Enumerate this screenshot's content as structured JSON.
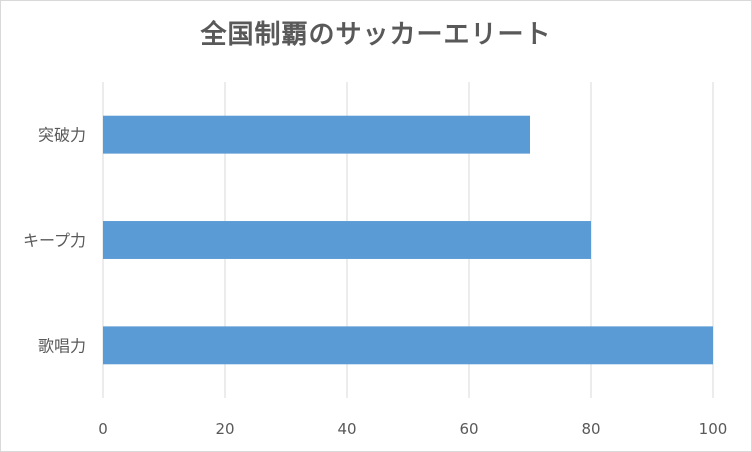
{
  "chart_data": {
    "type": "bar",
    "orientation": "horizontal",
    "title": "全国制覇のサッカーエリート",
    "categories": [
      "突破力",
      "キープ力",
      "歌唱力"
    ],
    "values": [
      70,
      80,
      100
    ],
    "xlim": [
      0,
      100
    ],
    "xticks": [
      "0",
      "20",
      "40",
      "60",
      "80",
      "100"
    ],
    "xlabel": "",
    "ylabel": "",
    "grid": "vertical",
    "legend": "none",
    "bar_color": "#5b9bd5",
    "grid_color": "#d9d9d9"
  }
}
